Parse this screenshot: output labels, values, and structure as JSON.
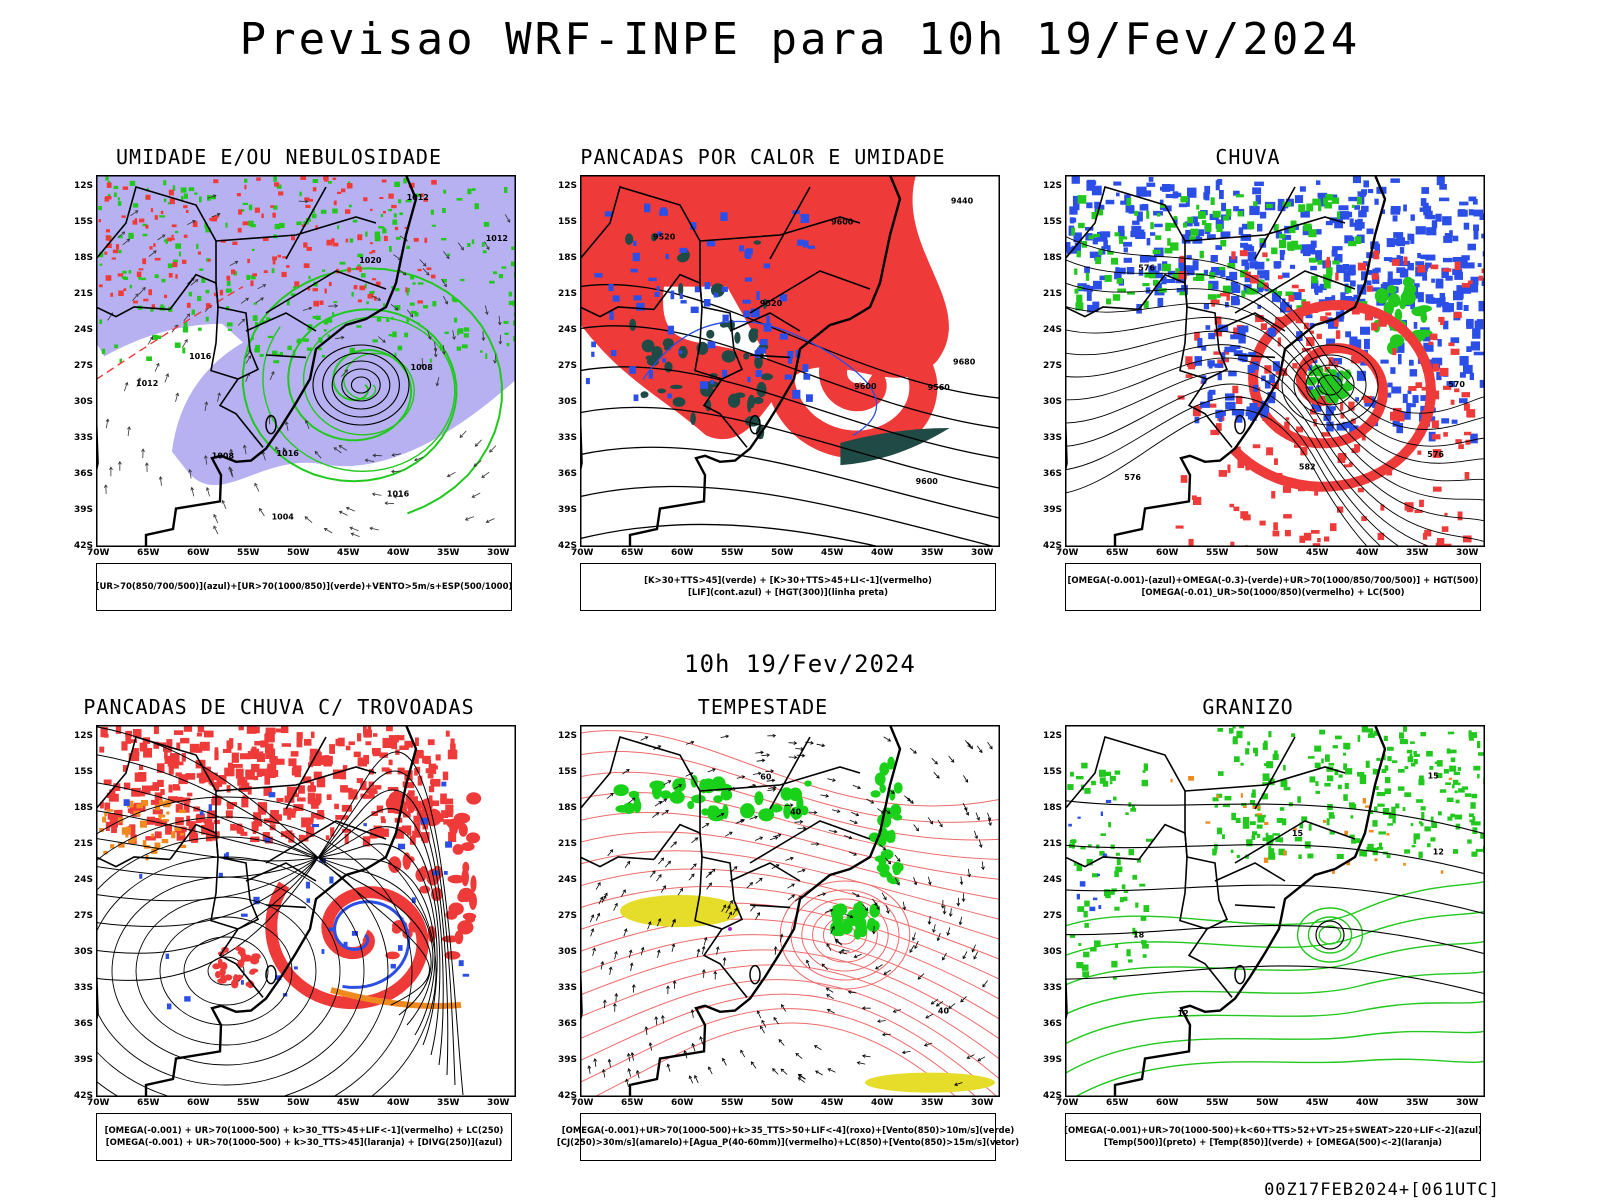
{
  "title": "Previsao WRF-INPE  para 10h 19/Fev/2024",
  "mid_date": "10h 19/Fev/2024",
  "footer": "00Z17FEB2024+[061UTC]",
  "lat_labels": [
    "12S",
    "15S",
    "18S",
    "21S",
    "24S",
    "27S",
    "30S",
    "33S",
    "36S",
    "39S",
    "42S"
  ],
  "lon_labels": [
    "70W",
    "65W",
    "60W",
    "55W",
    "50W",
    "45W",
    "40W",
    "35W",
    "30W"
  ],
  "colors": {
    "blue": "#2b4ee6",
    "lavender": "#aaa3f0",
    "green": "#22c81e",
    "red": "#ef3a3a",
    "darkteal": "#1f4a45",
    "orange": "#f08a1e",
    "yellow": "#e6dd2a",
    "purple": "#9b2ad6",
    "pink": "#ef6a6a",
    "brightgreen": "#19d119"
  },
  "panels": [
    {
      "id": "umidade",
      "title": "UMIDADE E/OU NEBULOSIDADE",
      "legend": [
        "[UR>70(850/700/500)](azul)+[UR>70(1000/850)](verde)+VENTO>5m/s+ESP(500/1000)"
      ],
      "contour_labels": [
        "1012",
        "1016",
        "1020",
        "1008",
        "1004",
        "1012",
        "1016",
        "1016",
        "1008",
        "1012"
      ]
    },
    {
      "id": "pancadas-calor",
      "title": "PANCADAS POR CALOR E UMIDADE",
      "legend": [
        "[K>30+TTS>45](verde) + [K>30+TTS>45+LI<-1](vermelho)",
        "[LIF](cont.azul) + [HGT(300)](linha preta)"
      ],
      "contour_labels": [
        "9680",
        "9600",
        "9520",
        "9520",
        "9440",
        "9600",
        "9600",
        "9560"
      ]
    },
    {
      "id": "chuva",
      "title": "CHUVA",
      "legend": [
        "[OMEGA(-0.001)-(azul)+OMEGA(-0.3)-(verde)+UR>70(1000/850/700/500)] + HGT(500)",
        "[OMEGA(-0.01)_UR>50(1000/850)(vermelho) + LC(500)"
      ],
      "contour_labels": [
        "576",
        "570",
        "576",
        "582",
        "576"
      ]
    },
    {
      "id": "trovoadas",
      "title": "PANCADAS DE CHUVA C/ TROVOADAS",
      "legend": [
        "[OMEGA(-0.001) + UR>70(1000-500) + k>30_TTS>45+LIF<-1](vermelho) + LC(250)",
        "[OMEGA(-0.001) + UR>70(1000-500) + k>30_TTS>45](laranja) + [DIVG(250)](azul)"
      ],
      "contour_labels": []
    },
    {
      "id": "tempestade",
      "title": "TEMPESTADE",
      "legend": [
        "[OMEGA(-0.001)+UR>70(1000-500)+k>35_TTS>50+LIF<-4](roxo)+[Vento(850)>10m/s](verde)",
        "[CJ(250)>30m/s](amarelo)+[Agua_P(40-60mm)](vermelho)+LC(850)+[Vento(850)>15m/s](vetor)"
      ],
      "contour_labels": [
        "40",
        "40",
        "60"
      ]
    },
    {
      "id": "granizo",
      "title": "GRANIZO",
      "legend": [
        "[OMEGA(-0.001)+UR>70(1000-500)+k<60+TTS>52+VT>25+SWEAT>220+LIF<-2](azul)",
        "[Temp(500)](preto) + [Temp(850)](verde) + [OMEGA(500)<-2](laranja)"
      ],
      "contour_labels": [
        "12",
        "15",
        "12",
        "18",
        "15"
      ]
    }
  ]
}
